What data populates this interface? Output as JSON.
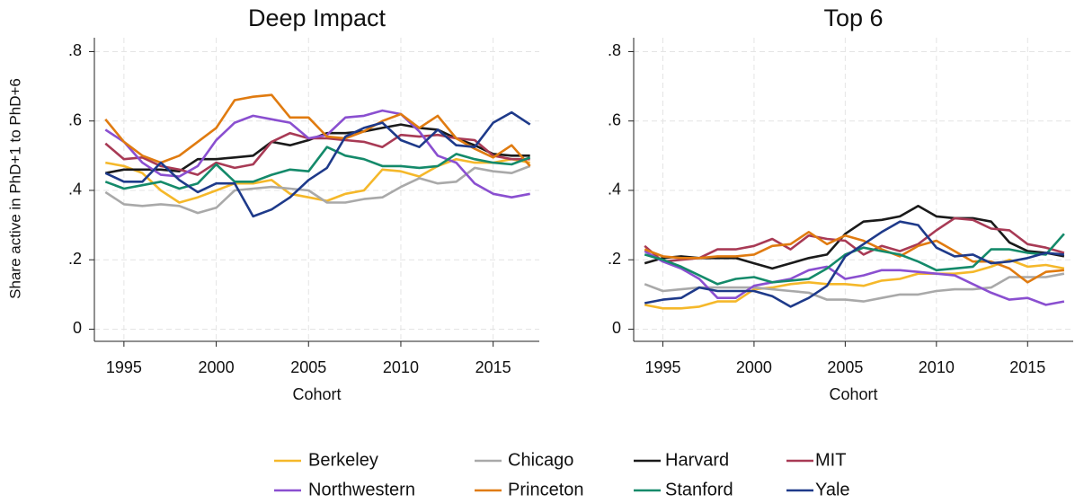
{
  "chart_data": [
    {
      "type": "line",
      "title": "Deep Impact",
      "xlabel": "Cohort",
      "ylabel": "Share active in PhD+1 to PhD+6",
      "x": [
        1994,
        1995,
        1996,
        1997,
        1998,
        1999,
        2000,
        2001,
        2002,
        2003,
        2004,
        2005,
        2006,
        2007,
        2008,
        2009,
        2010,
        2011,
        2012,
        2013,
        2014,
        2015,
        2016,
        2017
      ],
      "xlim": [
        1993.4,
        2017.5
      ],
      "xticks": [
        1995,
        2000,
        2005,
        2010,
        2015
      ],
      "ylim": [
        -0.035,
        0.84
      ],
      "yticks": [
        0,
        {
          "value": 0.2,
          "label": ".2"
        },
        {
          "value": 0.4,
          "label": ".4"
        },
        {
          "value": 0.6,
          "label": ".6"
        },
        {
          "value": 0.8,
          "label": ".8"
        }
      ],
      "grid": true,
      "series": [
        {
          "name": "Berkeley",
          "color": "#f5b82a",
          "values": [
            0.48,
            0.47,
            0.45,
            0.4,
            0.365,
            0.38,
            0.4,
            0.42,
            0.42,
            0.43,
            0.39,
            0.38,
            0.37,
            0.39,
            0.4,
            0.46,
            0.455,
            0.44,
            0.47,
            0.49,
            0.48,
            0.48,
            0.49,
            0.48
          ]
        },
        {
          "name": "Chicago",
          "color": "#a9a9a9",
          "values": [
            0.395,
            0.36,
            0.355,
            0.36,
            0.355,
            0.335,
            0.35,
            0.4,
            0.405,
            0.41,
            0.405,
            0.4,
            0.365,
            0.365,
            0.375,
            0.38,
            0.41,
            0.435,
            0.42,
            0.425,
            0.465,
            0.455,
            0.45,
            0.47
          ]
        },
        {
          "name": "Harvard",
          "color": "#1a1a1a",
          "values": [
            0.45,
            0.46,
            0.46,
            0.46,
            0.455,
            0.49,
            0.49,
            0.495,
            0.5,
            0.54,
            0.53,
            0.545,
            0.565,
            0.565,
            0.57,
            0.58,
            0.59,
            0.58,
            0.575,
            0.55,
            0.53,
            0.505,
            0.5,
            0.5
          ]
        },
        {
          "name": "MIT",
          "color": "#a83a55",
          "values": [
            0.535,
            0.49,
            0.495,
            0.47,
            0.46,
            0.445,
            0.48,
            0.465,
            0.475,
            0.54,
            0.565,
            0.55,
            0.55,
            0.545,
            0.54,
            0.525,
            0.56,
            0.555,
            0.56,
            0.55,
            0.545,
            0.5,
            0.49,
            0.49
          ]
        },
        {
          "name": "Northwestern",
          "color": "#8a4fd0",
          "values": [
            0.575,
            0.54,
            0.48,
            0.445,
            0.44,
            0.47,
            0.545,
            0.595,
            0.615,
            0.605,
            0.595,
            0.55,
            0.56,
            0.61,
            0.615,
            0.63,
            0.62,
            0.57,
            0.5,
            0.48,
            0.42,
            0.39,
            0.38,
            0.39
          ]
        },
        {
          "name": "Princeton",
          "color": "#e07b10",
          "values": [
            0.605,
            0.54,
            0.5,
            0.48,
            0.5,
            0.54,
            0.58,
            0.66,
            0.67,
            0.675,
            0.61,
            0.61,
            0.555,
            0.55,
            0.57,
            0.6,
            0.62,
            0.58,
            0.615,
            0.55,
            0.52,
            0.495,
            0.53,
            0.47
          ]
        },
        {
          "name": "Stanford",
          "color": "#148a6a",
          "values": [
            0.425,
            0.405,
            0.415,
            0.425,
            0.405,
            0.42,
            0.475,
            0.425,
            0.425,
            0.445,
            0.46,
            0.455,
            0.525,
            0.5,
            0.49,
            0.47,
            0.47,
            0.465,
            0.47,
            0.505,
            0.49,
            0.48,
            0.475,
            0.495
          ]
        },
        {
          "name": "Yale",
          "color": "#1e3a8a",
          "values": [
            0.45,
            0.425,
            0.425,
            0.48,
            0.43,
            0.395,
            0.42,
            0.42,
            0.325,
            0.345,
            0.38,
            0.43,
            0.465,
            0.555,
            0.58,
            0.595,
            0.545,
            0.525,
            0.575,
            0.53,
            0.525,
            0.595,
            0.625,
            0.59
          ]
        }
      ]
    },
    {
      "type": "line",
      "title": "Top 6",
      "xlabel": "Cohort",
      "x": [
        1994,
        1995,
        1996,
        1997,
        1998,
        1999,
        2000,
        2001,
        2002,
        2003,
        2004,
        2005,
        2006,
        2007,
        2008,
        2009,
        2010,
        2011,
        2012,
        2013,
        2014,
        2015,
        2016,
        2017
      ],
      "xlim": [
        1993.4,
        2017.5
      ],
      "xticks": [
        1995,
        2000,
        2005,
        2010,
        2015
      ],
      "ylim": [
        -0.035,
        0.84
      ],
      "yticks": [
        0,
        {
          "value": 0.2,
          "label": ".2"
        },
        {
          "value": 0.4,
          "label": ".4"
        },
        {
          "value": 0.6,
          "label": ".6"
        },
        {
          "value": 0.8,
          "label": ".8"
        }
      ],
      "grid": true,
      "series": [
        {
          "name": "Berkeley",
          "color": "#f5b82a",
          "values": [
            0.07,
            0.06,
            0.06,
            0.065,
            0.08,
            0.08,
            0.115,
            0.12,
            0.13,
            0.135,
            0.13,
            0.13,
            0.125,
            0.14,
            0.145,
            0.16,
            0.16,
            0.16,
            0.165,
            0.18,
            0.2,
            0.18,
            0.185,
            0.175
          ]
        },
        {
          "name": "Chicago",
          "color": "#a9a9a9",
          "values": [
            0.13,
            0.11,
            0.115,
            0.12,
            0.12,
            0.12,
            0.12,
            0.115,
            0.11,
            0.105,
            0.085,
            0.085,
            0.08,
            0.09,
            0.1,
            0.1,
            0.11,
            0.115,
            0.115,
            0.12,
            0.15,
            0.15,
            0.15,
            0.16
          ]
        },
        {
          "name": "Harvard",
          "color": "#1a1a1a",
          "values": [
            0.19,
            0.205,
            0.21,
            0.205,
            0.205,
            0.205,
            0.19,
            0.175,
            0.19,
            0.205,
            0.215,
            0.275,
            0.31,
            0.315,
            0.325,
            0.355,
            0.325,
            0.32,
            0.32,
            0.31,
            0.25,
            0.225,
            0.22,
            0.21
          ]
        },
        {
          "name": "MIT",
          "color": "#a83a55",
          "values": [
            0.24,
            0.195,
            0.2,
            0.205,
            0.23,
            0.23,
            0.24,
            0.26,
            0.23,
            0.27,
            0.26,
            0.255,
            0.215,
            0.24,
            0.225,
            0.245,
            0.285,
            0.32,
            0.315,
            0.29,
            0.285,
            0.245,
            0.235,
            0.22
          ]
        },
        {
          "name": "Northwestern",
          "color": "#8a4fd0",
          "values": [
            0.225,
            0.195,
            0.175,
            0.145,
            0.09,
            0.09,
            0.125,
            0.135,
            0.145,
            0.17,
            0.18,
            0.145,
            0.155,
            0.17,
            0.17,
            0.165,
            0.16,
            0.155,
            0.13,
            0.105,
            0.085,
            0.09,
            0.07,
            0.08
          ]
        },
        {
          "name": "Princeton",
          "color": "#e07b10",
          "values": [
            0.23,
            0.21,
            0.205,
            0.205,
            0.21,
            0.21,
            0.215,
            0.24,
            0.245,
            0.28,
            0.245,
            0.27,
            0.255,
            0.23,
            0.21,
            0.24,
            0.255,
            0.225,
            0.195,
            0.195,
            0.175,
            0.135,
            0.165,
            0.17
          ]
        },
        {
          "name": "Stanford",
          "color": "#148a6a",
          "values": [
            0.215,
            0.2,
            0.18,
            0.155,
            0.13,
            0.145,
            0.15,
            0.135,
            0.14,
            0.145,
            0.175,
            0.215,
            0.235,
            0.225,
            0.215,
            0.195,
            0.17,
            0.175,
            0.18,
            0.23,
            0.23,
            0.22,
            0.215,
            0.275
          ]
        },
        {
          "name": "Yale",
          "color": "#1e3a8a",
          "values": [
            0.075,
            0.085,
            0.09,
            0.12,
            0.11,
            0.11,
            0.11,
            0.095,
            0.065,
            0.09,
            0.125,
            0.21,
            0.245,
            0.28,
            0.31,
            0.3,
            0.235,
            0.21,
            0.215,
            0.19,
            0.195,
            0.205,
            0.22,
            0.215
          ]
        }
      ]
    }
  ]
}
